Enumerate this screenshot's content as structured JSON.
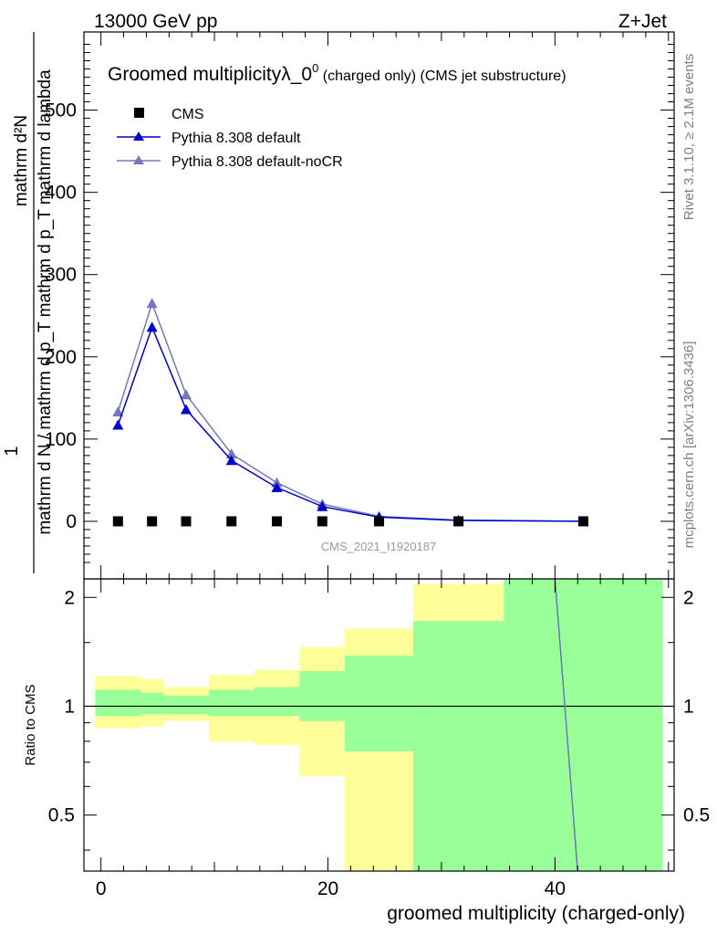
{
  "header": {
    "left": "13000 GeV pp",
    "right": "Z+Jet",
    "side_top": "Rivet 3.1.10, ≥ 2.1M events",
    "side_bottom": "mcplots.cern.ch [arXiv:1306.3436]"
  },
  "colors": {
    "cms": "#000000",
    "pythia_default": "#0000cc",
    "pythia_nocr": "#7777bb",
    "band_inner": "#99ff99",
    "band_outer": "#ffff99"
  },
  "chart_data": [
    {
      "type": "line",
      "title_main": "Groomed multiplicityλ_0",
      "title_sup": "0",
      "title_rest": " (charged only) (CMS jet substructure)",
      "ylabel_numer": "mathrm d²N",
      "ylabel_denom": "mathrm d N / mathrm d p_T mathrm d p_T mathrm d lambda",
      "ylabel_prefix": "1",
      "watermark": "CMS_2021_I1920187",
      "xlim": [
        -1.5,
        50.5
      ],
      "ylim": [
        -70,
        595
      ],
      "yticks": [
        0,
        100,
        200,
        300,
        400,
        500
      ],
      "ytick_labels": [
        "0",
        "100",
        "200",
        "300",
        "400",
        "500"
      ],
      "legend_position": "top-left",
      "x": [
        1.5,
        4.5,
        7.5,
        11.5,
        15.5,
        19.5,
        24.5,
        31.5,
        42.5
      ],
      "series": [
        {
          "name": "CMS",
          "marker": "square",
          "values": [
            0,
            0,
            0,
            0,
            0,
            0,
            0,
            0,
            0
          ]
        },
        {
          "name": "Pythia 8.308 default",
          "marker": "triangle",
          "values": [
            117,
            236,
            136,
            74,
            41,
            18,
            5,
            1,
            0
          ]
        },
        {
          "name": "Pythia 8.308 default-noCR",
          "marker": "triangle",
          "values": [
            133,
            265,
            154,
            82,
            47,
            21,
            6,
            1.5,
            0
          ]
        }
      ]
    },
    {
      "type": "area",
      "ylabel": "Ratio to CMS",
      "xlabel": "groomed multiplicity (charged-only)",
      "xlim": [
        -1.5,
        50.5
      ],
      "ylim": [
        0.35,
        2.25
      ],
      "xticks": [
        0,
        20,
        40
      ],
      "xtick_labels": [
        "0",
        "20",
        "40"
      ],
      "yticks": [
        0.5,
        1,
        2
      ],
      "ytick_labels": [
        "0.5",
        "1",
        "2"
      ],
      "bins": [
        [
          -0.5,
          3.5
        ],
        [
          3.5,
          5.5
        ],
        [
          5.5,
          9.5
        ],
        [
          9.5,
          13.5
        ],
        [
          13.5,
          17.5
        ],
        [
          17.5,
          21.5
        ],
        [
          21.5,
          27.5
        ],
        [
          27.5,
          35.5
        ],
        [
          35.5,
          49.5
        ]
      ],
      "band_inner": [
        [
          0.94,
          1.11
        ],
        [
          0.95,
          1.09
        ],
        [
          0.95,
          1.07
        ],
        [
          0.94,
          1.11
        ],
        [
          0.94,
          1.13
        ],
        [
          0.91,
          1.25
        ],
        [
          0.75,
          1.38
        ],
        [
          0.35,
          1.72
        ],
        [
          0.35,
          2.25
        ]
      ],
      "band_outer": [
        [
          0.87,
          1.21
        ],
        [
          0.88,
          1.19
        ],
        [
          0.91,
          1.13
        ],
        [
          0.8,
          1.22
        ],
        [
          0.78,
          1.26
        ],
        [
          0.64,
          1.46
        ],
        [
          0.35,
          1.64
        ],
        [
          0.35,
          2.18
        ],
        [
          0.35,
          2.25
        ]
      ],
      "series": [
        {
          "name": "Pythia 8.308 default",
          "points": [
            [
              40.0,
              2.25
            ],
            [
              42.0,
              0.35
            ]
          ]
        },
        {
          "name": "Pythia 8.308 default-noCR",
          "points": [
            [
              40.0,
              2.25
            ],
            [
              42.0,
              0.35
            ]
          ]
        }
      ]
    }
  ]
}
